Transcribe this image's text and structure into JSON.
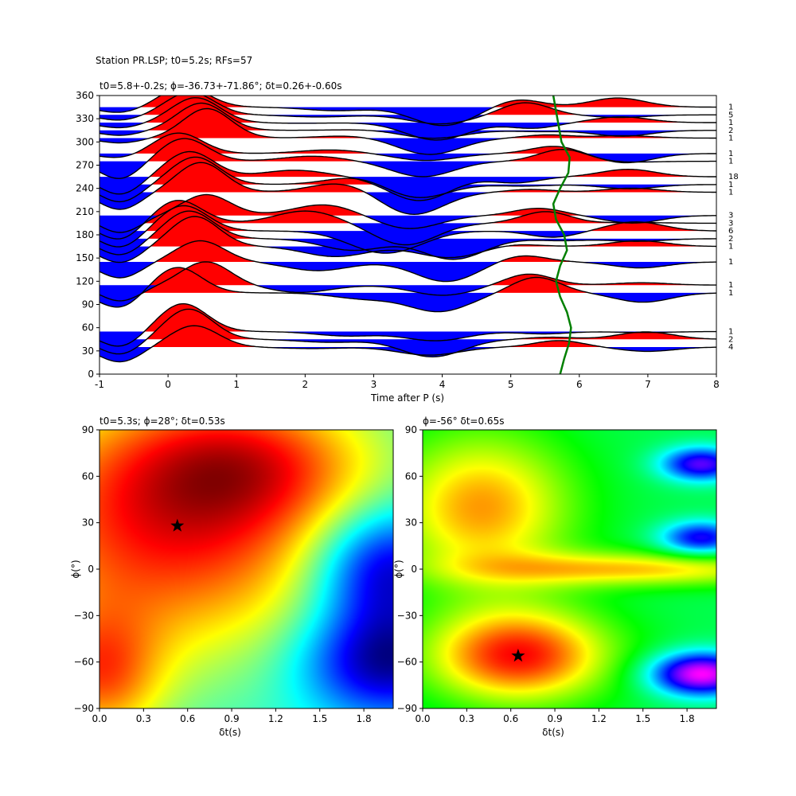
{
  "figure": {
    "suptitle": "Station PR.LSP; t0=5.2s; RFs=57"
  },
  "chart_data": [
    {
      "type": "line",
      "panel": "receiver-functions-by-back-azimuth",
      "title": "t0=5.8+-0.2s; ϕ=-36.73+-71.86°; δt=0.26+-0.60s",
      "xlabel": "Time after P (s)",
      "ylabel": "",
      "xlim": [
        -1,
        8
      ],
      "ylim": [
        0,
        360
      ],
      "xticks": [
        -1,
        0,
        1,
        2,
        3,
        4,
        5,
        6,
        7,
        8
      ],
      "yticks": [
        0,
        30,
        60,
        90,
        120,
        150,
        180,
        210,
        240,
        270,
        300,
        330,
        360
      ],
      "fill_positive_color": "#ff0000",
      "fill_negative_color": "#0000ff",
      "wiggle_color": "#000000",
      "traces": [
        {
          "baz": 35,
          "count": "4"
        },
        {
          "baz": 45,
          "count": "2"
        },
        {
          "baz": 55,
          "count": "1"
        },
        {
          "baz": 105,
          "count": "1"
        },
        {
          "baz": 115,
          "count": "1"
        },
        {
          "baz": 145,
          "count": "1"
        },
        {
          "baz": 165,
          "count": "1"
        },
        {
          "baz": 175,
          "count": "2"
        },
        {
          "baz": 185,
          "count": "6"
        },
        {
          "baz": 195,
          "count": "3"
        },
        {
          "baz": 205,
          "count": "3"
        },
        {
          "baz": 235,
          "count": "1"
        },
        {
          "baz": 245,
          "count": "1"
        },
        {
          "baz": 255,
          "count": "18"
        },
        {
          "baz": 275,
          "count": "1"
        },
        {
          "baz": 285,
          "count": "1"
        },
        {
          "baz": 305,
          "count": "1"
        },
        {
          "baz": 315,
          "count": "2"
        },
        {
          "baz": 325,
          "count": "1"
        },
        {
          "baz": 335,
          "count": "5"
        },
        {
          "baz": 345,
          "count": "1"
        }
      ],
      "moveout_curve": {
        "color": "#008000",
        "x": [
          5.72,
          5.78,
          5.85,
          5.88,
          5.82,
          5.72,
          5.66,
          5.72,
          5.82,
          5.78,
          5.66,
          5.62,
          5.72,
          5.84,
          5.86,
          5.74,
          5.62
        ],
        "y": [
          0,
          20,
          40,
          60,
          80,
          100,
          120,
          140,
          160,
          180,
          200,
          220,
          240,
          260,
          280,
          300,
          360
        ]
      }
    },
    {
      "type": "heatmap",
      "panel": "grid-search-left",
      "title": "t0=5.3s; ϕ=28°; δt=0.53s",
      "xlabel": "δt(s)",
      "ylabel": "ϕ(°)",
      "xlim": [
        0,
        2
      ],
      "ylim": [
        -90,
        90
      ],
      "xticks": [
        0.0,
        0.3,
        0.6,
        0.9,
        1.2,
        1.5,
        1.8
      ],
      "yticks": [
        -90,
        -60,
        -30,
        0,
        30,
        60,
        90
      ],
      "colormap": "jet-reversed",
      "peaks": [
        {
          "x": 0.5,
          "y": 28,
          "value": 1.0,
          "sx": 0.9,
          "sy": 60
        },
        {
          "x": 1.0,
          "y": 70,
          "value": 0.55,
          "sx": 0.6,
          "sy": 30
        },
        {
          "x": 0.0,
          "y": -70,
          "value": 0.7,
          "sx": 0.3,
          "sy": 30
        },
        {
          "x": 1.95,
          "y": 0,
          "value": -0.9,
          "sx": 0.35,
          "sy": 28
        },
        {
          "x": 1.95,
          "y": -60,
          "value": -0.9,
          "sx": 0.4,
          "sy": 25
        }
      ],
      "best": {
        "x": 0.53,
        "y": 28
      }
    },
    {
      "type": "heatmap",
      "panel": "grid-search-right",
      "title": "ϕ=-56° δt=0.65s",
      "xlabel": "δt(s)",
      "ylabel": "ϕ(°)",
      "xlim": [
        0,
        2
      ],
      "ylim": [
        -90,
        90
      ],
      "xticks": [
        0.0,
        0.3,
        0.6,
        0.9,
        1.2,
        1.5,
        1.8
      ],
      "yticks": [
        -90,
        -60,
        -30,
        0,
        30,
        60,
        90
      ],
      "colormap": "hsv-reversed",
      "peaks": [
        {
          "x": 0.65,
          "y": -56,
          "value": 1.0,
          "sx": 0.45,
          "sy": 22
        },
        {
          "x": 0.4,
          "y": 40,
          "value": 0.75,
          "sx": 0.45,
          "sy": 35
        },
        {
          "x": 1.5,
          "y": 0,
          "value": 0.65,
          "sx": 0.8,
          "sy": 8
        },
        {
          "x": 1.9,
          "y": -68,
          "value": -1.2,
          "sx": 0.25,
          "sy": 10
        },
        {
          "x": 1.9,
          "y": 68,
          "value": -0.9,
          "sx": 0.2,
          "sy": 8
        },
        {
          "x": 1.9,
          "y": 20,
          "value": -0.8,
          "sx": 0.2,
          "sy": 8
        }
      ],
      "best": {
        "x": 0.65,
        "y": -56
      }
    }
  ]
}
